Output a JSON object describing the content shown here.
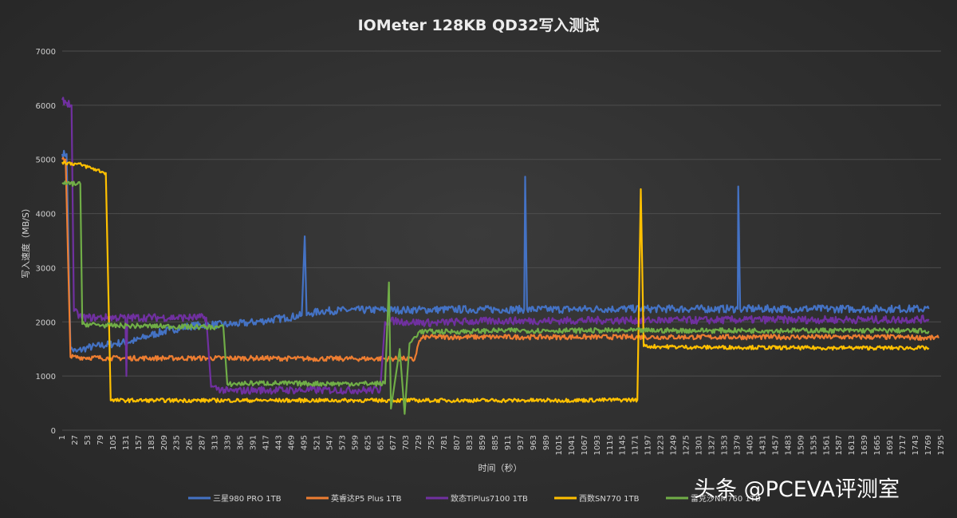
{
  "watermark": "头条 @PCEVA评测室",
  "chart_data": {
    "type": "line",
    "title": "IOMeter 128KB QD32写入测试",
    "xlabel": "时间（秒）",
    "ylabel": "写入速度（MB/S）",
    "xlim": [
      1,
      1795
    ],
    "ylim": [
      0,
      7000
    ],
    "yticks": [
      0,
      1000,
      2000,
      3000,
      4000,
      5000,
      6000,
      7000
    ],
    "xtick_start": 1,
    "xtick_step": 26,
    "xtick_last": 1795,
    "grid": true,
    "legend": "bottom",
    "series": [
      {
        "name": "三星980 PRO 1TB",
        "color": "#4472c4",
        "points": [
          [
            1,
            5100
          ],
          [
            10,
            5100
          ],
          [
            18,
            1500
          ],
          [
            30,
            1450
          ],
          [
            50,
            1520
          ],
          [
            70,
            1550
          ],
          [
            110,
            1600
          ],
          [
            150,
            1650
          ],
          [
            180,
            1750
          ],
          [
            220,
            1850
          ],
          [
            260,
            1920
          ],
          [
            300,
            1950
          ],
          [
            340,
            1950
          ],
          [
            380,
            1980
          ],
          [
            420,
            2030
          ],
          [
            460,
            2080
          ],
          [
            490,
            2120
          ],
          [
            496,
            3580
          ],
          [
            500,
            2120
          ],
          [
            510,
            2160
          ],
          [
            530,
            2200
          ],
          [
            600,
            2220
          ],
          [
            700,
            2220
          ],
          [
            800,
            2230
          ],
          [
            900,
            2230
          ],
          [
            944,
            2230
          ],
          [
            946,
            4680
          ],
          [
            950,
            2230
          ],
          [
            1000,
            2230
          ],
          [
            1100,
            2240
          ],
          [
            1200,
            2240
          ],
          [
            1300,
            2240
          ],
          [
            1380,
            2240
          ],
          [
            1381,
            4500
          ],
          [
            1385,
            2240
          ],
          [
            1500,
            2240
          ],
          [
            1600,
            2240
          ],
          [
            1700,
            2240
          ],
          [
            1770,
            2240
          ]
        ],
        "noise": 70
      },
      {
        "name": "英睿达P5 Plus 1TB",
        "color": "#ed7d31",
        "points": [
          [
            1,
            5000
          ],
          [
            8,
            5000
          ],
          [
            18,
            1350
          ],
          [
            100,
            1330
          ],
          [
            200,
            1330
          ],
          [
            300,
            1330
          ],
          [
            400,
            1330
          ],
          [
            500,
            1320
          ],
          [
            600,
            1320
          ],
          [
            700,
            1320
          ],
          [
            720,
            1300
          ],
          [
            730,
            1650
          ],
          [
            740,
            1720
          ],
          [
            900,
            1720
          ],
          [
            1100,
            1720
          ],
          [
            1300,
            1720
          ],
          [
            1500,
            1720
          ],
          [
            1700,
            1720
          ],
          [
            1790,
            1700
          ]
        ],
        "noise": 45
      },
      {
        "name": "致态TiPlus7100 1TB",
        "color": "#7030a0",
        "points": [
          [
            1,
            6100
          ],
          [
            20,
            6000
          ],
          [
            25,
            2200
          ],
          [
            40,
            2080
          ],
          [
            70,
            2080
          ],
          [
            130,
            2080
          ],
          [
            132,
            1000
          ],
          [
            134,
            2080
          ],
          [
            200,
            2080
          ],
          [
            295,
            2080
          ],
          [
            305,
            800
          ],
          [
            340,
            720
          ],
          [
            400,
            740
          ],
          [
            500,
            740
          ],
          [
            600,
            740
          ],
          [
            650,
            740
          ],
          [
            660,
            2000
          ],
          [
            680,
            2020
          ],
          [
            700,
            2000
          ],
          [
            760,
            1980
          ],
          [
            800,
            2000
          ],
          [
            900,
            2020
          ],
          [
            1000,
            2020
          ],
          [
            1100,
            2030
          ],
          [
            1200,
            2030
          ],
          [
            1300,
            2030
          ],
          [
            1400,
            2040
          ],
          [
            1500,
            2040
          ],
          [
            1600,
            2040
          ],
          [
            1700,
            2040
          ],
          [
            1770,
            2050
          ]
        ],
        "noise": 70
      },
      {
        "name": "西数SN770 1TB",
        "color": "#ffc000",
        "points": [
          [
            1,
            4950
          ],
          [
            40,
            4900
          ],
          [
            90,
            4750
          ],
          [
            100,
            550
          ],
          [
            200,
            550
          ],
          [
            400,
            550
          ],
          [
            600,
            550
          ],
          [
            800,
            550
          ],
          [
            1000,
            550
          ],
          [
            1150,
            560
          ],
          [
            1175,
            560
          ],
          [
            1182,
            4450
          ],
          [
            1188,
            1550
          ],
          [
            1300,
            1530
          ],
          [
            1400,
            1530
          ],
          [
            1500,
            1520
          ],
          [
            1600,
            1520
          ],
          [
            1700,
            1520
          ],
          [
            1770,
            1520
          ]
        ],
        "noise": 35
      },
      {
        "name": "雷克沙NM760 1TB",
        "color": "#70ad47",
        "points": [
          [
            1,
            4550
          ],
          [
            38,
            4550
          ],
          [
            42,
            1960
          ],
          [
            100,
            1930
          ],
          [
            200,
            1920
          ],
          [
            330,
            1900
          ],
          [
            338,
            850
          ],
          [
            400,
            870
          ],
          [
            500,
            860
          ],
          [
            600,
            860
          ],
          [
            660,
            860
          ],
          [
            668,
            2730
          ],
          [
            672,
            400
          ],
          [
            690,
            1500
          ],
          [
            700,
            300
          ],
          [
            710,
            1600
          ],
          [
            730,
            1820
          ],
          [
            800,
            1820
          ],
          [
            900,
            1840
          ],
          [
            1000,
            1840
          ],
          [
            1100,
            1840
          ],
          [
            1200,
            1840
          ],
          [
            1300,
            1840
          ],
          [
            1400,
            1840
          ],
          [
            1500,
            1840
          ],
          [
            1600,
            1840
          ],
          [
            1700,
            1840
          ],
          [
            1770,
            1830
          ]
        ],
        "noise": 45
      }
    ]
  }
}
